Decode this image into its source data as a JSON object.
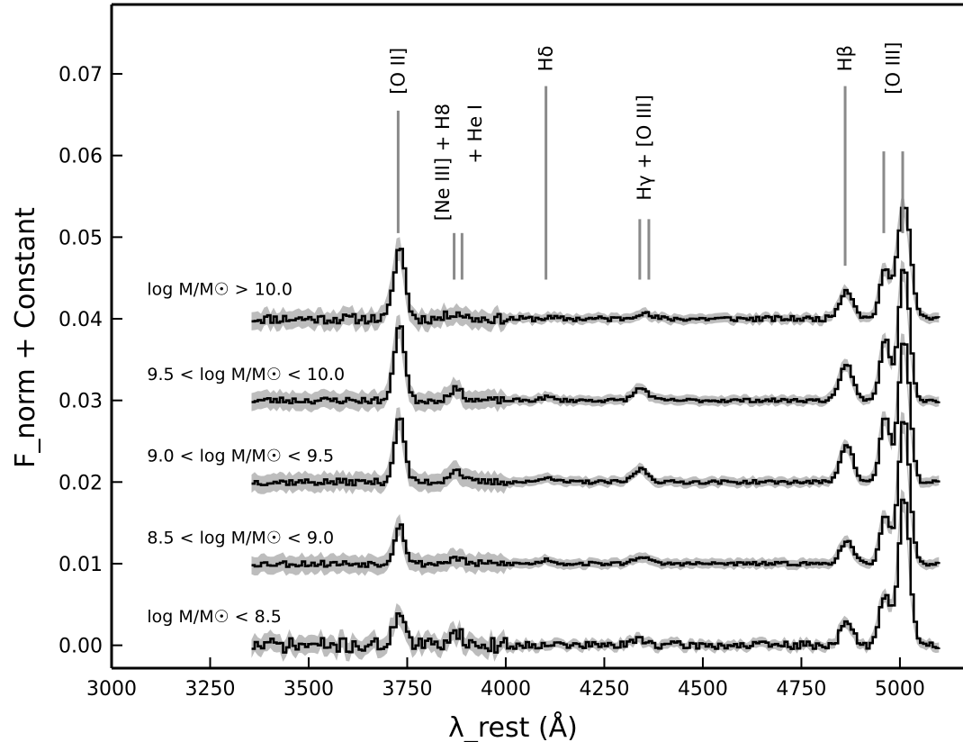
{
  "chart_data": {
    "type": "line",
    "title": "",
    "xlabel": "λ_rest (Å)",
    "ylabel": "F_norm + Constant",
    "xlim": [
      3000,
      5160
    ],
    "ylim": [
      -0.0028,
      0.0785
    ],
    "x_ticks": [
      "3000",
      "3250",
      "3500",
      "3750",
      "4000",
      "4250",
      "4500",
      "4750",
      "5000"
    ],
    "y_ticks": [
      "0.00",
      "0.01",
      "0.02",
      "0.03",
      "0.04",
      "0.05",
      "0.06",
      "0.07"
    ],
    "grid": false,
    "legend": "none",
    "line_color": "#000000",
    "band_color": "#bdbdbd",
    "marker_color": "#8a8a8a",
    "line_markers": [
      {
        "label": "[O II]",
        "x": [
          3727
        ],
        "y_bottom": 0.0505,
        "y_top": 0.0655,
        "label_y": 0.0675
      },
      {
        "label": "[Ne III] + H8",
        "x": [
          3869,
          3889
        ],
        "y_bottom": 0.0448,
        "y_top": 0.0505,
        "label_y": 0.052
      },
      {
        "label": "+ He I",
        "x": [],
        "y_bottom": 0,
        "y_top": 0,
        "label_y": 0.059
      },
      {
        "label": "Hδ",
        "x": [
          4102
        ],
        "y_bottom": 0.0448,
        "y_top": 0.0685,
        "label_y": 0.0703
      },
      {
        "label": "Hγ + [O III]",
        "x": [
          4340,
          4363
        ],
        "y_bottom": 0.0448,
        "y_top": 0.0522,
        "label_y": 0.0545
      },
      {
        "label": "Hβ",
        "x": [
          4861
        ],
        "y_bottom": 0.0465,
        "y_top": 0.0685,
        "label_y": 0.0703
      },
      {
        "label": "[O III]",
        "x": [
          4959,
          5007
        ],
        "y_bottom": 0.0505,
        "y_top": 0.0605,
        "label_y": 0.0675
      }
    ],
    "series": [
      {
        "name": "log M/M☉ > 10.0",
        "offset": 0.04,
        "label_x": 3090,
        "label_y": 0.0429,
        "noise": 0.0006,
        "seed": 11,
        "features": [
          [
            3727,
            0.0088,
            14
          ],
          [
            3869,
            0.0008,
            18
          ],
          [
            4102,
            0.0001,
            16
          ],
          [
            4340,
            0.0007,
            20
          ],
          [
            4861,
            0.0035,
            18
          ],
          [
            4959,
            0.0058,
            14
          ],
          [
            5007,
            0.0143,
            16
          ]
        ]
      },
      {
        "name": "9.5 < log M/M☉ < 10.0",
        "offset": 0.03,
        "label_x": 3090,
        "label_y": 0.0325,
        "noise": 0.0004,
        "seed": 23,
        "features": [
          [
            3727,
            0.0095,
            13
          ],
          [
            3869,
            0.0014,
            17
          ],
          [
            4102,
            0.0004,
            15
          ],
          [
            4340,
            0.0015,
            18
          ],
          [
            4861,
            0.0045,
            16
          ],
          [
            4959,
            0.0075,
            13
          ],
          [
            5007,
            0.0165,
            14
          ]
        ]
      },
      {
        "name": "9.0 < log M/M☉ < 9.5",
        "offset": 0.02,
        "label_x": 3090,
        "label_y": 0.0225,
        "noise": 0.0004,
        "seed": 37,
        "features": [
          [
            3727,
            0.0078,
            13
          ],
          [
            3869,
            0.0015,
            17
          ],
          [
            4102,
            0.0007,
            15
          ],
          [
            4340,
            0.0016,
            18
          ],
          [
            4861,
            0.0047,
            16
          ],
          [
            4959,
            0.008,
            13
          ],
          [
            5007,
            0.0175,
            14
          ]
        ]
      },
      {
        "name": "8.5 < log M/M☉ < 9.0",
        "offset": 0.01,
        "label_x": 3090,
        "label_y": 0.0125,
        "noise": 0.0004,
        "seed": 53,
        "features": [
          [
            3727,
            0.0048,
            13
          ],
          [
            3869,
            0.0007,
            17
          ],
          [
            4102,
            0.0005,
            15
          ],
          [
            4340,
            0.0009,
            18
          ],
          [
            4861,
            0.0028,
            16
          ],
          [
            4959,
            0.0058,
            13
          ],
          [
            5007,
            0.0178,
            14
          ]
        ]
      },
      {
        "name": "log M/M☉ < 8.5",
        "offset": 0.0,
        "label_x": 3090,
        "label_y": 0.0028,
        "noise": 0.0009,
        "seed": 71,
        "features": [
          [
            3727,
            0.0045,
            13
          ],
          [
            3869,
            0.0018,
            17
          ],
          [
            4102,
            0.0003,
            15
          ],
          [
            4340,
            0.0008,
            18
          ],
          [
            4861,
            0.0027,
            16
          ],
          [
            4959,
            0.0065,
            13
          ],
          [
            5007,
            0.0185,
            14
          ]
        ]
      }
    ]
  }
}
